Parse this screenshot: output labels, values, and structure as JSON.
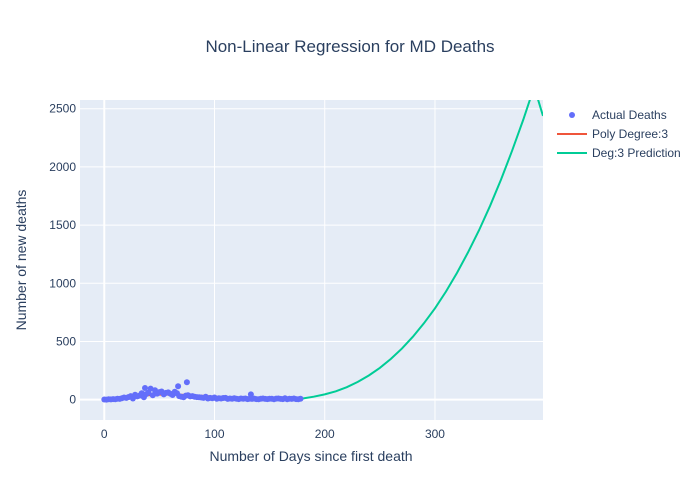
{
  "chart_data": {
    "type": "scatter",
    "title": "Non-Linear Regression for MD Deaths",
    "xlabel": "Number of Days since first death",
    "ylabel": "Number of new deaths",
    "xlim": [
      -22,
      398
    ],
    "ylim": [
      -175,
      2575
    ],
    "xticks": [
      0,
      100,
      200,
      300
    ],
    "yticks": [
      0,
      500,
      1000,
      1500,
      2000,
      2500
    ],
    "grid": true,
    "legend_position": "top-right",
    "series": [
      {
        "name": "Actual Deaths",
        "mode": "markers",
        "color": "#636efa",
        "x": [
          0,
          2,
          4,
          6,
          8,
          10,
          12,
          14,
          16,
          18,
          20,
          22,
          24,
          26,
          28,
          30,
          32,
          34,
          36,
          37,
          38,
          40,
          42,
          44,
          46,
          48,
          50,
          52,
          54,
          56,
          58,
          60,
          62,
          64,
          66,
          67,
          68,
          70,
          72,
          74,
          75,
          76,
          78,
          80,
          82,
          84,
          86,
          88,
          90,
          92,
          94,
          96,
          98,
          100,
          102,
          104,
          106,
          108,
          110,
          112,
          114,
          116,
          118,
          120,
          122,
          124,
          126,
          128,
          130,
          132,
          133,
          134,
          136,
          138,
          140,
          142,
          144,
          146,
          148,
          150,
          152,
          154,
          156,
          158,
          160,
          162,
          164,
          166,
          168,
          170,
          172,
          174,
          176,
          178
        ],
        "y": [
          1,
          0,
          3,
          2,
          5,
          4,
          8,
          6,
          12,
          18,
          15,
          22,
          30,
          10,
          42,
          28,
          35,
          55,
          20,
          100,
          48,
          60,
          95,
          38,
          80,
          52,
          65,
          70,
          45,
          58,
          62,
          50,
          40,
          68,
          55,
          115,
          30,
          25,
          20,
          35,
          150,
          38,
          28,
          30,
          25,
          22,
          20,
          18,
          15,
          24,
          10,
          15,
          12,
          18,
          8,
          12,
          10,
          14,
          15,
          6,
          10,
          8,
          12,
          8,
          5,
          10,
          7,
          10,
          5,
          8,
          45,
          6,
          9,
          5,
          4,
          7,
          10,
          6,
          5,
          8,
          7,
          3,
          9,
          10,
          6,
          5,
          12,
          4,
          8,
          6,
          10,
          5,
          3,
          7
        ]
      },
      {
        "name": "Poly Degree:3",
        "mode": "lines",
        "color": "#ef553b",
        "x": [
          0,
          10,
          20,
          30,
          40,
          50,
          60,
          70,
          80,
          90,
          100,
          110,
          120,
          130,
          140,
          150,
          160,
          170,
          178
        ],
        "y": [
          -3,
          6,
          19,
          30,
          38,
          43,
          44,
          42,
          38,
          32,
          26,
          20,
          14,
          9,
          5,
          3,
          2,
          3,
          5
        ]
      },
      {
        "name": "Deg:3 Prediction",
        "mode": "lines",
        "color": "#00cc96",
        "x": [
          180,
          190,
          200,
          210,
          220,
          230,
          240,
          250,
          260,
          270,
          280,
          290,
          300,
          310,
          320,
          330,
          340,
          350,
          360,
          370,
          380,
          390,
          398
        ],
        "y": [
          10,
          25,
          45,
          72,
          107,
          152,
          207,
          273,
          350,
          439,
          541,
          656,
          785,
          929,
          1089,
          1265,
          1457,
          1666,
          1893,
          2139,
          2404,
          2688,
          2438
        ]
      }
    ]
  }
}
